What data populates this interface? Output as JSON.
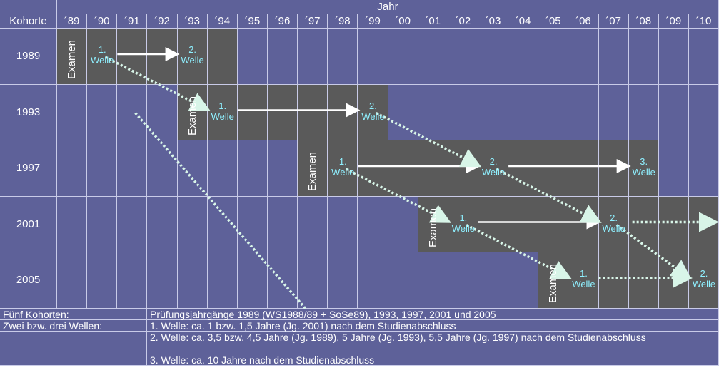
{
  "header": {
    "top_label": "Jahr",
    "corner_label": "Kohorte",
    "years": [
      "´89",
      "´90",
      "´91",
      "´92",
      "´93",
      "´94",
      "´95",
      "´96",
      "´97",
      "´98",
      "´99",
      "´00",
      "´01",
      "´02",
      "´03",
      "´04",
      "´05",
      "´06",
      "´07",
      "´08",
      "´09",
      "´10"
    ]
  },
  "cohorts": [
    {
      "label": "1989",
      "exam_col": 0,
      "waves": [
        {
          "num": "1.",
          "word": "Welle",
          "col": 1
        },
        {
          "num": "2.",
          "word": "Welle",
          "col": 4
        }
      ]
    },
    {
      "label": "1993",
      "exam_col": 4,
      "waves": [
        {
          "num": "1.",
          "word": "Welle",
          "col": 5
        },
        {
          "num": "2.",
          "word": "Welle",
          "col": 10
        }
      ]
    },
    {
      "label": "1997",
      "exam_col": 8,
      "waves": [
        {
          "num": "1.",
          "word": "Welle",
          "col": 9
        },
        {
          "num": "2.",
          "word": "Welle",
          "col": 14
        },
        {
          "num": "3.",
          "word": "Welle",
          "col": 19
        }
      ]
    },
    {
      "label": "2001",
      "exam_col": 12,
      "waves": [
        {
          "num": "1.",
          "word": "Welle",
          "col": 13
        },
        {
          "num": "2.",
          "word": "Welle",
          "col": 18
        }
      ]
    },
    {
      "label": "2005",
      "exam_col": 16,
      "waves": [
        {
          "num": "1.",
          "word": "Welle",
          "col": 17
        },
        {
          "num": "2.",
          "word": "Welle",
          "col": 21
        }
      ]
    }
  ],
  "exam_label": "Examen",
  "footer": [
    {
      "left": "Fünf Kohorten:",
      "right": "Prüfungsjahrgänge 1989 (WS1988/89 + SoSe89), 1993, 1997, 2001 und 2005"
    },
    {
      "left": "Zwei bzw. drei Wellen:",
      "right": "1. Welle: ca. 1 bzw. 1,5 Jahre (Jg. 2001) nach dem Studienabschluss"
    },
    {
      "left": "",
      "right": "2. Welle: ca. 3,5 bzw. 4,5 Jahre (Jg. 1989), 5 Jahre (Jg. 1993), 5,5 Jahre (Jg. 1997) nach dem Studienabschluss"
    },
    {
      "left": "",
      "right": "3. Welle: ca. 10 Jahre nach dem Studienabschluss"
    }
  ],
  "colors": {
    "grid_bg": "#5e6199",
    "dark_block": "#5a5a5a",
    "line": "#c9cbe8",
    "wave_text": "#8ff0ff",
    "arrow": "#ffffff",
    "dotted_arrow": "#d8f5e8"
  }
}
